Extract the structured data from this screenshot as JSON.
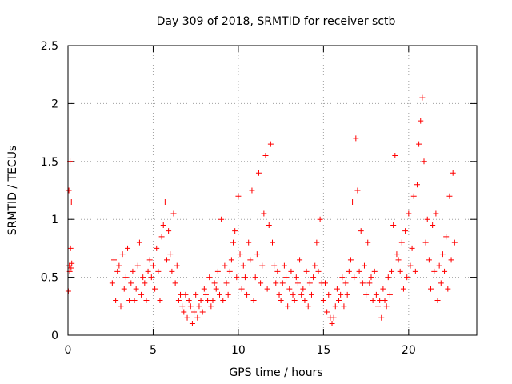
{
  "chart_data": {
    "type": "scatter",
    "title": "Day 309 of 2018, SRMTID for receiver sctb",
    "xlabel": "GPS time / hours",
    "ylabel": "SRMTID / TECUs",
    "xlim": [
      0,
      24
    ],
    "ylim": [
      0,
      2.5
    ],
    "xticks": [
      0,
      5,
      10,
      15,
      20
    ],
    "xtick_labels": [
      "0",
      "5",
      "10",
      "15",
      "20"
    ],
    "yticks": [
      0,
      0.5,
      1,
      1.5,
      2,
      2.5
    ],
    "ytick_labels": [
      "0",
      "0.5",
      "1",
      "1.5",
      "2",
      "2.5"
    ],
    "grid": true,
    "marker": "+",
    "series": [
      {
        "name": "SRMTID",
        "color": "#ff0000",
        "x": [
          0.02,
          0.05,
          0.08,
          0.1,
          0.12,
          0.15,
          0.18,
          0.2,
          0.22,
          2.6,
          2.7,
          2.8,
          2.9,
          3.0,
          3.1,
          3.2,
          3.3,
          3.4,
          3.5,
          3.6,
          3.7,
          3.8,
          3.9,
          4.0,
          4.1,
          4.2,
          4.3,
          4.4,
          4.5,
          4.6,
          4.7,
          4.8,
          4.9,
          5.0,
          5.1,
          5.2,
          5.3,
          5.4,
          5.5,
          5.6,
          5.7,
          5.8,
          5.9,
          6.0,
          6.1,
          6.2,
          6.3,
          6.4,
          6.5,
          6.6,
          6.7,
          6.8,
          6.9,
          7.0,
          7.1,
          7.2,
          7.3,
          7.4,
          7.5,
          7.6,
          7.7,
          7.8,
          7.9,
          8.0,
          8.1,
          8.2,
          8.3,
          8.4,
          8.5,
          8.6,
          8.7,
          8.8,
          8.9,
          9.0,
          9.1,
          9.2,
          9.3,
          9.4,
          9.5,
          9.6,
          9.7,
          9.8,
          9.9,
          10.0,
          10.1,
          10.2,
          10.3,
          10.4,
          10.5,
          10.6,
          10.7,
          10.8,
          10.9,
          11.0,
          11.1,
          11.2,
          11.3,
          11.4,
          11.5,
          11.6,
          11.7,
          11.8,
          11.9,
          12.0,
          12.1,
          12.2,
          12.3,
          12.4,
          12.5,
          12.6,
          12.7,
          12.8,
          12.9,
          13.0,
          13.1,
          13.2,
          13.3,
          13.4,
          13.5,
          13.6,
          13.7,
          13.8,
          13.9,
          14.0,
          14.1,
          14.2,
          14.3,
          14.4,
          14.5,
          14.6,
          14.7,
          14.8,
          14.9,
          15.0,
          15.1,
          15.2,
          15.3,
          15.4,
          15.5,
          15.6,
          15.7,
          15.8,
          15.9,
          16.0,
          16.1,
          16.2,
          16.3,
          16.4,
          16.5,
          16.6,
          16.7,
          16.8,
          16.9,
          17.0,
          17.1,
          17.2,
          17.3,
          17.4,
          17.5,
          17.6,
          17.7,
          17.8,
          17.9,
          18.0,
          18.1,
          18.2,
          18.3,
          18.4,
          18.5,
          18.6,
          18.7,
          18.8,
          18.9,
          19.0,
          19.1,
          19.2,
          19.3,
          19.4,
          19.5,
          19.6,
          19.7,
          19.8,
          19.9,
          20.0,
          20.1,
          20.2,
          20.3,
          20.4,
          20.5,
          20.6,
          20.7,
          20.8,
          20.9,
          21.0,
          21.1,
          21.2,
          21.3,
          21.4,
          21.5,
          21.6,
          21.7,
          21.8,
          21.9,
          22.0,
          22.1,
          22.2,
          22.3,
          22.4,
          22.5,
          22.6,
          22.7
        ],
        "y": [
          0.38,
          1.25,
          0.6,
          0.55,
          1.5,
          0.75,
          0.58,
          1.15,
          0.62,
          0.45,
          0.65,
          0.3,
          0.55,
          0.6,
          0.25,
          0.7,
          0.4,
          0.5,
          0.75,
          0.3,
          0.45,
          0.55,
          0.3,
          0.4,
          0.6,
          0.8,
          0.35,
          0.5,
          0.45,
          0.3,
          0.55,
          0.65,
          0.5,
          0.6,
          0.4,
          0.75,
          0.55,
          0.3,
          0.85,
          0.95,
          1.15,
          0.65,
          0.9,
          0.7,
          0.55,
          1.05,
          0.45,
          0.6,
          0.3,
          0.35,
          0.25,
          0.2,
          0.35,
          0.15,
          0.3,
          0.25,
          0.1,
          0.2,
          0.35,
          0.15,
          0.25,
          0.3,
          0.2,
          0.4,
          0.35,
          0.3,
          0.5,
          0.25,
          0.3,
          0.45,
          0.4,
          0.55,
          0.35,
          1.0,
          0.3,
          0.6,
          0.45,
          0.35,
          0.55,
          0.65,
          0.8,
          0.9,
          0.5,
          1.2,
          0.7,
          0.4,
          0.6,
          0.5,
          0.35,
          0.8,
          0.65,
          1.25,
          0.3,
          0.5,
          0.7,
          1.4,
          0.45,
          0.6,
          1.05,
          1.55,
          0.4,
          0.95,
          1.65,
          0.8,
          0.6,
          0.45,
          0.55,
          0.35,
          0.3,
          0.45,
          0.6,
          0.5,
          0.25,
          0.4,
          0.55,
          0.35,
          0.3,
          0.5,
          0.45,
          0.65,
          0.35,
          0.4,
          0.3,
          0.55,
          0.25,
          0.45,
          0.35,
          0.5,
          0.6,
          0.8,
          0.55,
          1.0,
          0.45,
          0.3,
          0.45,
          0.2,
          0.35,
          0.15,
          0.1,
          0.15,
          0.25,
          0.4,
          0.3,
          0.35,
          0.5,
          0.25,
          0.45,
          0.35,
          0.55,
          0.65,
          1.15,
          0.5,
          1.7,
          1.25,
          0.55,
          0.9,
          0.45,
          0.6,
          0.35,
          0.8,
          0.45,
          0.5,
          0.3,
          0.55,
          0.35,
          0.25,
          0.3,
          0.15,
          0.4,
          0.3,
          0.25,
          0.5,
          0.35,
          0.55,
          0.95,
          1.55,
          0.7,
          0.65,
          0.55,
          0.8,
          0.4,
          0.9,
          0.5,
          1.05,
          0.6,
          0.75,
          1.2,
          0.55,
          1.3,
          1.65,
          1.85,
          2.05,
          1.5,
          0.8,
          1.0,
          0.65,
          0.4,
          0.95,
          0.55,
          1.05,
          0.3,
          0.6,
          0.45,
          0.7,
          0.55,
          0.85,
          0.4,
          1.2,
          0.65,
          1.4,
          0.8
        ]
      }
    ]
  }
}
